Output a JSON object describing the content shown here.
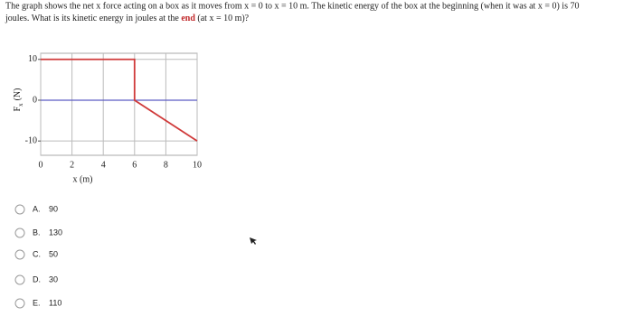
{
  "question": [
    "The graph shows the net x force acting on a box as it moves from x = 0 to x = 10 m.  The kinetic energy of the box at the beginning (when it was at x = 0) is 70",
    "joules.  What is its kinetic energy in joules at the",
    "end",
    "(at x = 10 m)?"
  ],
  "chart_data": {
    "type": "line",
    "xlabel": "x (m)",
    "ylabel": {
      "symbol": "F",
      "subscript": "x",
      "unit": "(N)"
    },
    "x": [
      0,
      6,
      6,
      10
    ],
    "series": [
      {
        "color": "#d03a3a",
        "values": [
          10,
          10,
          0,
          -10
        ]
      }
    ],
    "xlim": [
      0,
      10
    ],
    "ylim": [
      -13.5,
      11.5
    ],
    "xticks": [
      0,
      2,
      4,
      6,
      8,
      10
    ],
    "yticks": [
      10,
      0,
      -10
    ],
    "grid": true,
    "zero_line": true,
    "zero_line_color": "#5c5cc4"
  },
  "options": [
    {
      "letter": "A.",
      "value": 90
    },
    {
      "letter": "B.",
      "value": 130
    },
    {
      "letter": "C.",
      "value": 50
    },
    {
      "letter": "D.",
      "value": 30
    },
    {
      "letter": "E.",
      "value": 110
    }
  ]
}
